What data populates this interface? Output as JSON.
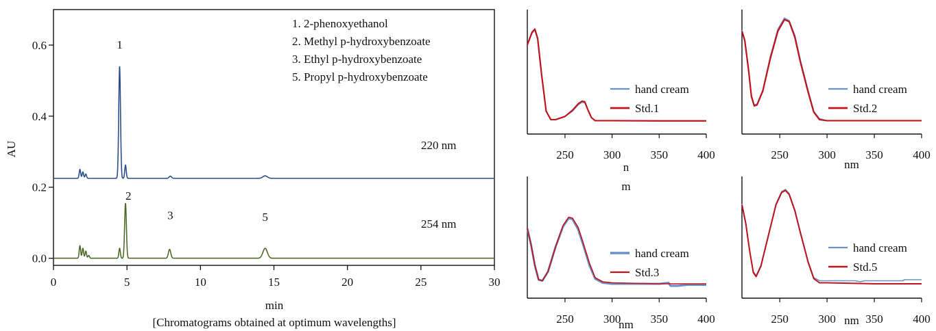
{
  "chart_data": [
    {
      "type": "line",
      "xlabel": "min",
      "ylabel": "AU",
      "caption": "[Chromatograms obtained at optimum wavelengths]",
      "xlim": [
        0,
        30
      ],
      "ylim": [
        -0.02,
        0.7
      ],
      "xticks": [
        "0",
        "5",
        "10",
        "15",
        "20",
        "25",
        "30"
      ],
      "yticks": [
        "0.0",
        "0.2",
        "0.4",
        "0.6"
      ],
      "legend_box": [
        "1. 2-phenoxyethanol",
        "2. Methyl p-hydroxybenzoate",
        "3. Ethyl p-hydroxybenzoate",
        "5. Propyl p-hydroxybenzoate"
      ],
      "colors": {
        "220": "#2b4f8a",
        "254": "#4f6b2a"
      },
      "series": [
        {
          "name": "220 nm",
          "baseline": 0.225,
          "peaks": [
            {
              "x": 1.8,
              "h": 0.025,
              "w": 0.05
            },
            {
              "x": 2.0,
              "h": 0.018,
              "w": 0.05
            },
            {
              "x": 2.2,
              "h": 0.012,
              "w": 0.05
            },
            {
              "x": 4.5,
              "h": 0.315,
              "w": 0.06
            },
            {
              "x": 4.9,
              "h": 0.037,
              "w": 0.05
            },
            {
              "x": 7.95,
              "h": 0.006,
              "w": 0.08
            },
            {
              "x": 14.4,
              "h": 0.007,
              "w": 0.15
            }
          ]
        },
        {
          "name": "254 nm",
          "baseline": 0.0,
          "peaks": [
            {
              "x": 1.8,
              "h": 0.035,
              "w": 0.05
            },
            {
              "x": 2.0,
              "h": 0.028,
              "w": 0.05
            },
            {
              "x": 2.2,
              "h": 0.02,
              "w": 0.05
            },
            {
              "x": 2.4,
              "h": 0.008,
              "w": 0.05
            },
            {
              "x": 4.5,
              "h": 0.028,
              "w": 0.05
            },
            {
              "x": 4.9,
              "h": 0.155,
              "w": 0.06
            },
            {
              "x": 7.9,
              "h": 0.025,
              "w": 0.08
            },
            {
              "x": 14.4,
              "h": 0.028,
              "w": 0.15
            }
          ]
        }
      ],
      "peak_labels": [
        {
          "text": "1",
          "x": 4.5,
          "y": 0.59
        },
        {
          "text": "2",
          "x": 5.1,
          "y": 0.165
        },
        {
          "text": "3",
          "x": 7.95,
          "y": 0.11
        },
        {
          "text": "5",
          "x": 14.4,
          "y": 0.105
        }
      ]
    },
    {
      "type": "line",
      "xticks": [
        "250",
        "300",
        "350",
        "400"
      ],
      "xlim": [
        210,
        400
      ],
      "xlabel": "n m",
      "ylim": [
        0,
        1
      ],
      "series": [
        {
          "name": "hand cream",
          "color": "#6b8fc7",
          "width": 1.6,
          "points": [
            [
              210,
              0.73
            ],
            [
              215,
              0.84
            ],
            [
              218,
              0.87
            ],
            [
              221,
              0.78
            ],
            [
              225,
              0.45
            ],
            [
              230,
              0.1
            ],
            [
              235,
              0.02
            ],
            [
              240,
              0.02
            ],
            [
              250,
              0.05
            ],
            [
              258,
              0.1
            ],
            [
              264,
              0.16
            ],
            [
              268,
              0.185
            ],
            [
              271,
              0.18
            ],
            [
              274,
              0.12
            ],
            [
              278,
              0.04
            ],
            [
              282,
              0.01
            ],
            [
              300,
              0.01
            ],
            [
              350,
              0.008
            ],
            [
              400,
              0.008
            ]
          ]
        },
        {
          "name": "Std.1",
          "color": "#c0141c",
          "width": 2.2,
          "points": [
            [
              210,
              0.73
            ],
            [
              215,
              0.85
            ],
            [
              218,
              0.88
            ],
            [
              221,
              0.79
            ],
            [
              225,
              0.46
            ],
            [
              230,
              0.1
            ],
            [
              235,
              0.02
            ],
            [
              240,
              0.02
            ],
            [
              250,
              0.05
            ],
            [
              258,
              0.11
            ],
            [
              264,
              0.17
            ],
            [
              268,
              0.195
            ],
            [
              271,
              0.19
            ],
            [
              274,
              0.12
            ],
            [
              278,
              0.04
            ],
            [
              282,
              0.01
            ],
            [
              300,
              0.01
            ],
            [
              350,
              0.008
            ],
            [
              400,
              0.008
            ]
          ]
        }
      ]
    },
    {
      "type": "line",
      "xticks": [
        "250",
        "300",
        "350",
        "400"
      ],
      "xlim": [
        210,
        400
      ],
      "xlabel": "nm",
      "ylim": [
        0,
        1
      ],
      "series": [
        {
          "name": "hand cream",
          "color": "#6b8fc7",
          "width": 1.6,
          "points": [
            [
              210,
              0.87
            ],
            [
              213,
              0.78
            ],
            [
              217,
              0.5
            ],
            [
              220,
              0.25
            ],
            [
              223,
              0.16
            ],
            [
              226,
              0.17
            ],
            [
              232,
              0.3
            ],
            [
              240,
              0.62
            ],
            [
              248,
              0.88
            ],
            [
              255,
              0.985
            ],
            [
              260,
              0.96
            ],
            [
              266,
              0.82
            ],
            [
              272,
              0.58
            ],
            [
              280,
              0.3
            ],
            [
              286,
              0.1
            ],
            [
              292,
              0.03
            ],
            [
              300,
              0.01
            ],
            [
              350,
              0.01
            ],
            [
              400,
              0.01
            ]
          ]
        },
        {
          "name": "Std.2",
          "color": "#c0141c",
          "width": 2.2,
          "points": [
            [
              210,
              0.86
            ],
            [
              213,
              0.77
            ],
            [
              217,
              0.49
            ],
            [
              220,
              0.24
            ],
            [
              223,
              0.15
            ],
            [
              226,
              0.16
            ],
            [
              232,
              0.29
            ],
            [
              240,
              0.6
            ],
            [
              248,
              0.86
            ],
            [
              255,
              0.97
            ],
            [
              260,
              0.95
            ],
            [
              266,
              0.8
            ],
            [
              272,
              0.56
            ],
            [
              280,
              0.28
            ],
            [
              286,
              0.09
            ],
            [
              292,
              0.02
            ],
            [
              300,
              0.01
            ],
            [
              350,
              0.01
            ],
            [
              400,
              0.01
            ]
          ]
        }
      ]
    },
    {
      "type": "line",
      "xticks": [
        "250",
        "300",
        "350",
        "400"
      ],
      "xlim": [
        210,
        400
      ],
      "xlabel": "nm",
      "ylim": [
        0,
        1
      ],
      "series": [
        {
          "name": "hand cream",
          "color": "#6b8fc7",
          "width": 3,
          "points": [
            [
              210,
              0.56
            ],
            [
              214,
              0.4
            ],
            [
              218,
              0.2
            ],
            [
              222,
              0.06
            ],
            [
              226,
              0.05
            ],
            [
              232,
              0.14
            ],
            [
              240,
              0.38
            ],
            [
              248,
              0.58
            ],
            [
              254,
              0.66
            ],
            [
              258,
              0.65
            ],
            [
              264,
              0.55
            ],
            [
              270,
              0.38
            ],
            [
              276,
              0.2
            ],
            [
              282,
              0.07
            ],
            [
              290,
              0.03
            ],
            [
              300,
              0.02
            ],
            [
              330,
              0.02
            ],
            [
              350,
              0.02
            ],
            [
              360,
              0.03
            ],
            [
              362,
              0.0
            ],
            [
              370,
              0.0
            ],
            [
              380,
              0.01
            ],
            [
              400,
              0.01
            ]
          ]
        },
        {
          "name": "Std.3",
          "color": "#c0141c",
          "width": 1.6,
          "points": [
            [
              210,
              0.56
            ],
            [
              214,
              0.4
            ],
            [
              218,
              0.2
            ],
            [
              222,
              0.06
            ],
            [
              226,
              0.05
            ],
            [
              232,
              0.14
            ],
            [
              240,
              0.38
            ],
            [
              248,
              0.59
            ],
            [
              254,
              0.67
            ],
            [
              258,
              0.66
            ],
            [
              264,
              0.57
            ],
            [
              270,
              0.4
            ],
            [
              276,
              0.22
            ],
            [
              282,
              0.08
            ],
            [
              290,
              0.04
            ],
            [
              300,
              0.03
            ],
            [
              350,
              0.02
            ],
            [
              400,
              0.02
            ]
          ]
        }
      ]
    },
    {
      "type": "line",
      "xticks": [
        "250",
        "300",
        "350",
        "400"
      ],
      "xlim": [
        210,
        400
      ],
      "xlabel": "nm",
      "ylim": [
        0,
        1
      ],
      "series": [
        {
          "name": "hand cream",
          "color": "#6b8fc7",
          "width": 1.6,
          "points": [
            [
              210,
              0.8
            ],
            [
              214,
              0.62
            ],
            [
              218,
              0.36
            ],
            [
              222,
              0.14
            ],
            [
              225,
              0.1
            ],
            [
              230,
              0.2
            ],
            [
              238,
              0.5
            ],
            [
              246,
              0.8
            ],
            [
              252,
              0.92
            ],
            [
              256,
              0.94
            ],
            [
              260,
              0.9
            ],
            [
              266,
              0.74
            ],
            [
              272,
              0.52
            ],
            [
              280,
              0.24
            ],
            [
              286,
              0.08
            ],
            [
              292,
              0.05
            ],
            [
              300,
              0.05
            ],
            [
              330,
              0.05
            ],
            [
              335,
              0.04
            ],
            [
              340,
              0.05
            ],
            [
              350,
              0.05
            ],
            [
              380,
              0.05
            ],
            [
              382,
              0.06
            ],
            [
              400,
              0.06
            ]
          ]
        },
        {
          "name": "Std.5",
          "color": "#c0141c",
          "width": 2,
          "points": [
            [
              210,
              0.79
            ],
            [
              214,
              0.61
            ],
            [
              218,
              0.35
            ],
            [
              222,
              0.13
            ],
            [
              225,
              0.09
            ],
            [
              230,
              0.19
            ],
            [
              238,
              0.49
            ],
            [
              246,
              0.79
            ],
            [
              252,
              0.91
            ],
            [
              256,
              0.93
            ],
            [
              260,
              0.89
            ],
            [
              266,
              0.73
            ],
            [
              272,
              0.51
            ],
            [
              280,
              0.23
            ],
            [
              286,
              0.07
            ],
            [
              292,
              0.03
            ],
            [
              300,
              0.03
            ],
            [
              350,
              0.02
            ],
            [
              400,
              0.02
            ]
          ]
        }
      ]
    }
  ]
}
